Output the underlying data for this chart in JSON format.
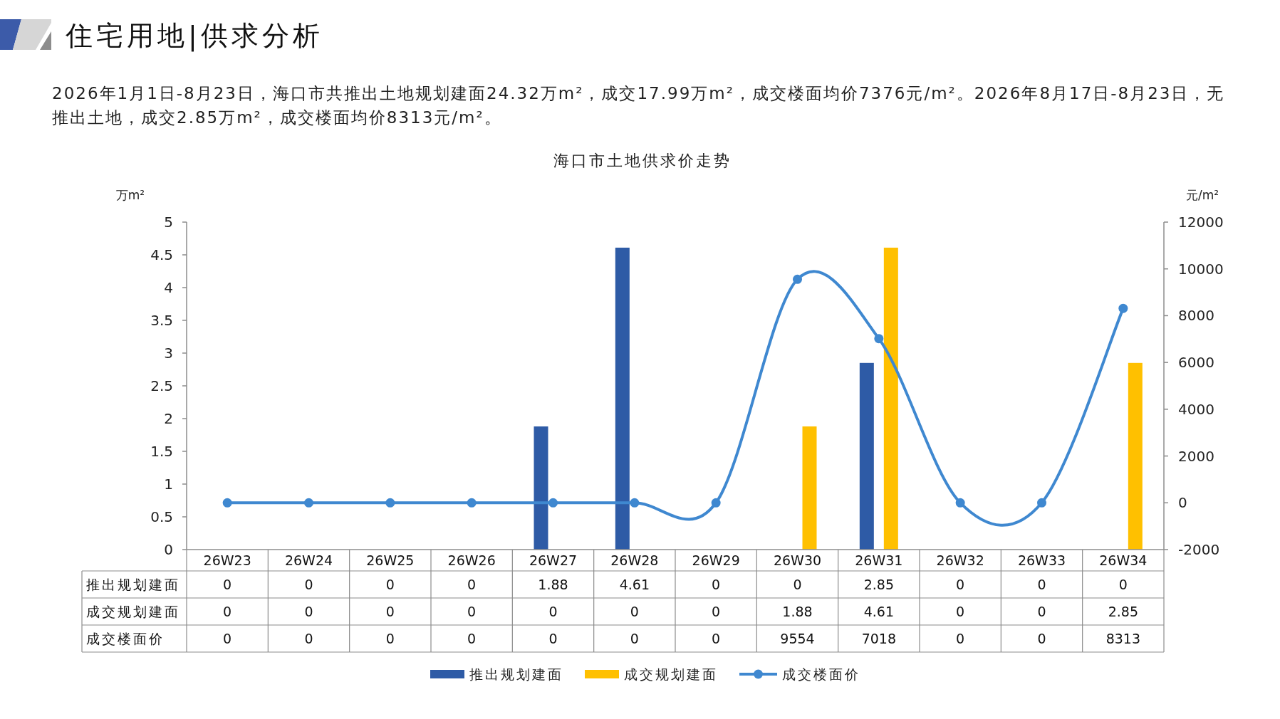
{
  "chart_data": {
    "type": "bar",
    "title": "海口市土地供求价走势",
    "annotations": [
      "住宅用地|供求分析",
      "2026年1月1日-8月23日，海口市共推出土地规划建面24.32万m²，成交17.99万m²，成交楼面均价7376元/m²。2026年8月17日-8月23日，无推出土地，成交2.85万m²，成交楼面均价8313元/m²。"
    ],
    "ylabel": "万m²",
    "y2label": "元/m²",
    "categories": [
      "26W23",
      "26W24",
      "26W25",
      "26W26",
      "26W27",
      "26W28",
      "26W29",
      "26W30",
      "26W31",
      "26W32",
      "26W33",
      "26W34"
    ],
    "series": [
      {
        "name": "推出规划建面",
        "color": "#2e5ba6",
        "values": [
          0,
          0,
          0,
          0,
          1.88,
          4.61,
          0,
          0,
          2.85,
          0,
          0,
          0
        ]
      },
      {
        "name": "成交规划建面",
        "color": "#ffc000",
        "values": [
          0,
          0,
          0,
          0,
          0,
          0,
          0,
          1.88,
          4.61,
          0,
          0,
          2.85
        ]
      },
      {
        "name": "成交楼面价",
        "type": "line",
        "axis": "y2",
        "marker": "circle",
        "color": "#3f88d0",
        "values": [
          0,
          0,
          0,
          0,
          0,
          0,
          0,
          9554,
          7018,
          0,
          0,
          8313
        ]
      }
    ],
    "ylim": [
      0,
      5
    ],
    "yticks": [
      0,
      0.5,
      1,
      1.5,
      2,
      2.5,
      3,
      3.5,
      4,
      4.5,
      5
    ],
    "y2lim": [
      -2000,
      12000
    ],
    "y2ticks": [
      -2000,
      0,
      2000,
      4000,
      6000,
      8000,
      10000,
      12000
    ],
    "data_labels": true,
    "legend": "bottom"
  }
}
